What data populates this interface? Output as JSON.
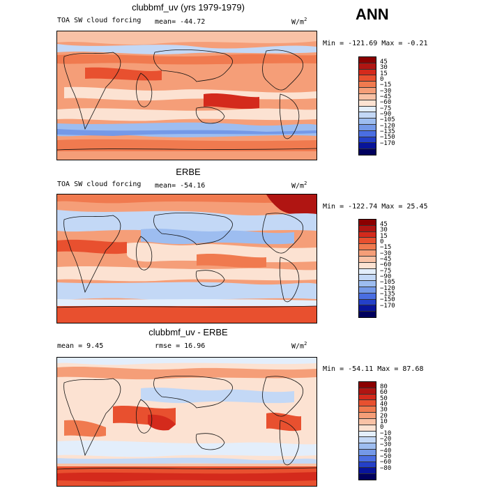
{
  "season": "ANN",
  "units_base": "W/m",
  "units_exp": "2",
  "panels": [
    {
      "title": "clubbmf_uv (yrs 1979-1979)",
      "left_label": "TOA SW cloud forcing",
      "stat_label": "mean= -44.72",
      "minmax": "Min = -121.69 Max =  -0.21",
      "levels": [
        "45",
        "30",
        "15",
        "0",
        "−15",
        "−30",
        "−45",
        "−60",
        "−75",
        "−90",
        "−105",
        "−120",
        "−135",
        "−150",
        "−170"
      ],
      "colors": [
        "#8b0000",
        "#b01512",
        "#d42a1c",
        "#e8502f",
        "#f07a4f",
        "#f59e78",
        "#f9c2a6",
        "#fce2d2",
        "#e3eefb",
        "#c3d8f6",
        "#9dbdf0",
        "#7499e8",
        "#4a6ee2",
        "#2440c8",
        "#08149a",
        "#00005e"
      ]
    },
    {
      "title": "ERBE",
      "left_label": "TOA SW cloud forcing",
      "stat_label": "mean= -54.16",
      "minmax": "Min = -122.74 Max =  25.45",
      "levels": [
        "45",
        "30",
        "15",
        "0",
        "−15",
        "−30",
        "−45",
        "−60",
        "−75",
        "−90",
        "−105",
        "−120",
        "−135",
        "−150",
        "−170"
      ],
      "colors": [
        "#8b0000",
        "#b01512",
        "#d42a1c",
        "#e8502f",
        "#f07a4f",
        "#f59e78",
        "#f9c2a6",
        "#fce2d2",
        "#e3eefb",
        "#c3d8f6",
        "#9dbdf0",
        "#7499e8",
        "#4a6ee2",
        "#2440c8",
        "#08149a",
        "#00005e"
      ]
    },
    {
      "title": "clubbmf_uv - ERBE",
      "left_label": "mean =   9.45",
      "stat_label": "rmse =  16.96",
      "minmax": "Min = -54.11 Max =  87.68",
      "levels": [
        "80",
        "60",
        "50",
        "40",
        "30",
        "20",
        "10",
        "0",
        "−10",
        "−20",
        "−30",
        "−40",
        "−50",
        "−60",
        "−80"
      ],
      "colors": [
        "#8b0000",
        "#b01512",
        "#d42a1c",
        "#e8502f",
        "#f07a4f",
        "#f59e78",
        "#f9c2a6",
        "#fce2d2",
        "#e3eefb",
        "#c3d8f6",
        "#9dbdf0",
        "#7499e8",
        "#4a6ee2",
        "#2440c8",
        "#08149a",
        "#00005e"
      ]
    }
  ]
}
